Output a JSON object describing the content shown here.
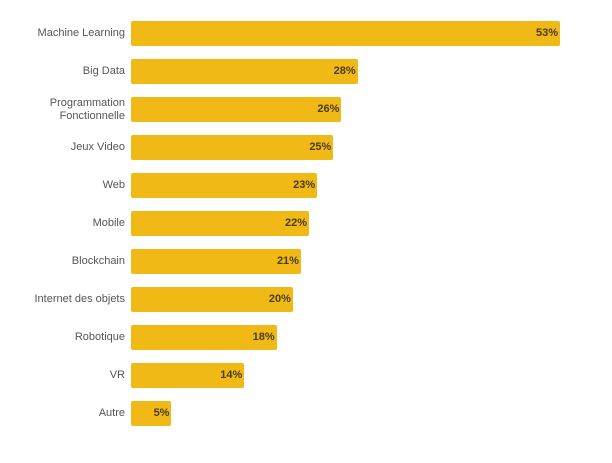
{
  "chart_data": {
    "type": "bar",
    "orientation": "horizontal",
    "title": "",
    "xlabel": "",
    "ylabel": "",
    "xlim": [
      0,
      53
    ],
    "grid": false,
    "bar_color": "#F0B916",
    "categories": [
      "Machine Learning",
      "Big Data",
      "Programmation\nFonctionnelle",
      "Jeux Video",
      "Web",
      "Mobile",
      "Blockchain",
      "Internet des objets",
      "Robotique",
      "VR",
      "Autre"
    ],
    "values": [
      53,
      28,
      26,
      25,
      23,
      22,
      21,
      20,
      18,
      14,
      5
    ],
    "value_labels": [
      "53%",
      "28%",
      "26%",
      "25%",
      "23%",
      "22%",
      "21%",
      "20%",
      "18%",
      "14%",
      "5%"
    ]
  }
}
